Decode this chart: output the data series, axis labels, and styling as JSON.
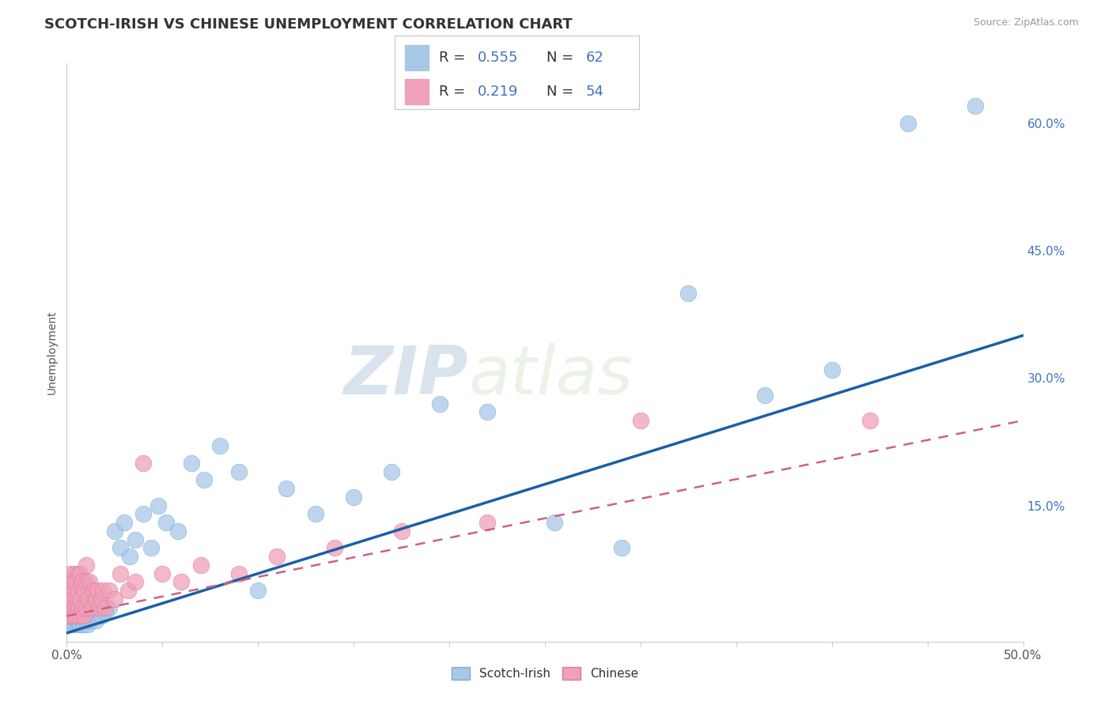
{
  "title": "SCOTCH-IRISH VS CHINESE UNEMPLOYMENT CORRELATION CHART",
  "source": "Source: ZipAtlas.com",
  "ylabel": "Unemployment",
  "xlim": [
    0.0,
    0.5
  ],
  "ylim": [
    -0.01,
    0.67
  ],
  "yticks_right": [
    0.15,
    0.3,
    0.45,
    0.6
  ],
  "yticklabels_right": [
    "15.0%",
    "30.0%",
    "45.0%",
    "60.0%"
  ],
  "scotch_irish_R": 0.555,
  "scotch_irish_N": 62,
  "chinese_R": 0.219,
  "chinese_N": 54,
  "scotch_irish_color": "#a8c8e8",
  "scotch_irish_edge_color": "#7aaed4",
  "chinese_color": "#f0a0b8",
  "chinese_edge_color": "#e07898",
  "scotch_irish_line_color": "#1a5fa8",
  "chinese_line_color": "#d06080",
  "background_color": "#ffffff",
  "grid_color": "#c8d8e8",
  "watermark_zip": "ZIP",
  "watermark_atlas": "atlas",
  "scotch_irish_x": [
    0.001,
    0.001,
    0.002,
    0.002,
    0.003,
    0.003,
    0.004,
    0.004,
    0.004,
    0.005,
    0.005,
    0.006,
    0.006,
    0.006,
    0.007,
    0.007,
    0.008,
    0.008,
    0.009,
    0.009,
    0.01,
    0.01,
    0.011,
    0.011,
    0.012,
    0.013,
    0.014,
    0.015,
    0.016,
    0.017,
    0.018,
    0.019,
    0.02,
    0.022,
    0.025,
    0.028,
    0.03,
    0.033,
    0.036,
    0.04,
    0.044,
    0.048,
    0.052,
    0.058,
    0.065,
    0.072,
    0.08,
    0.09,
    0.1,
    0.115,
    0.13,
    0.15,
    0.17,
    0.195,
    0.22,
    0.255,
    0.29,
    0.325,
    0.365,
    0.4,
    0.44,
    0.475
  ],
  "scotch_irish_y": [
    0.01,
    0.015,
    0.01,
    0.02,
    0.015,
    0.02,
    0.01,
    0.02,
    0.025,
    0.015,
    0.02,
    0.01,
    0.015,
    0.02,
    0.01,
    0.02,
    0.015,
    0.02,
    0.01,
    0.02,
    0.015,
    0.025,
    0.01,
    0.02,
    0.015,
    0.02,
    0.025,
    0.015,
    0.02,
    0.025,
    0.02,
    0.03,
    0.025,
    0.03,
    0.12,
    0.1,
    0.13,
    0.09,
    0.11,
    0.14,
    0.1,
    0.15,
    0.13,
    0.12,
    0.2,
    0.18,
    0.22,
    0.19,
    0.05,
    0.17,
    0.14,
    0.16,
    0.19,
    0.27,
    0.26,
    0.13,
    0.1,
    0.4,
    0.28,
    0.31,
    0.6,
    0.62
  ],
  "chinese_x": [
    0.001,
    0.001,
    0.001,
    0.002,
    0.002,
    0.002,
    0.003,
    0.003,
    0.003,
    0.004,
    0.004,
    0.004,
    0.005,
    0.005,
    0.005,
    0.006,
    0.006,
    0.006,
    0.007,
    0.007,
    0.007,
    0.008,
    0.008,
    0.009,
    0.009,
    0.01,
    0.01,
    0.01,
    0.011,
    0.012,
    0.013,
    0.014,
    0.015,
    0.016,
    0.017,
    0.018,
    0.019,
    0.02,
    0.022,
    0.025,
    0.028,
    0.032,
    0.036,
    0.04,
    0.05,
    0.06,
    0.07,
    0.09,
    0.11,
    0.14,
    0.175,
    0.22,
    0.3,
    0.42
  ],
  "chinese_y": [
    0.02,
    0.04,
    0.06,
    0.03,
    0.05,
    0.07,
    0.02,
    0.04,
    0.06,
    0.03,
    0.05,
    0.07,
    0.02,
    0.04,
    0.06,
    0.03,
    0.05,
    0.07,
    0.02,
    0.04,
    0.07,
    0.03,
    0.06,
    0.02,
    0.05,
    0.03,
    0.06,
    0.08,
    0.04,
    0.06,
    0.03,
    0.05,
    0.04,
    0.05,
    0.03,
    0.04,
    0.05,
    0.03,
    0.05,
    0.04,
    0.07,
    0.05,
    0.06,
    0.2,
    0.07,
    0.06,
    0.08,
    0.07,
    0.09,
    0.1,
    0.12,
    0.13,
    0.25,
    0.25
  ],
  "title_fontsize": 13,
  "axis_label_fontsize": 10,
  "tick_fontsize": 11,
  "legend_fontsize": 13
}
